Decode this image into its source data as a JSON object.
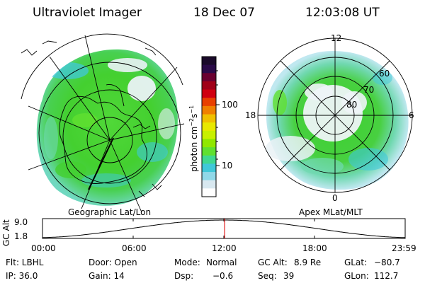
{
  "header": {
    "instrument": "Ultraviolet Imager",
    "date": "18 Dec 07",
    "time": "12:03:08 UT"
  },
  "left_panel": {
    "caption": "Geographic Lat/Lon"
  },
  "right_panel": {
    "caption": "Apex MLat/MLT",
    "mlt_labels": [
      "12",
      "18",
      "6",
      "0"
    ],
    "mlat_labels": [
      "60",
      "70",
      "80"
    ]
  },
  "colorbar": {
    "unit_label": "photon cm",
    "unit_sup1": "−2",
    "unit_mid": "s",
    "unit_sup2": "−1",
    "tick_labels": [
      "100",
      "10"
    ],
    "colors": [
      "#1a0a2a",
      "#2a0a48",
      "#6a0030",
      "#a00018",
      "#d00010",
      "#e84000",
      "#f08000",
      "#f0c000",
      "#e8e800",
      "#c8f000",
      "#90e800",
      "#60e030",
      "#40d890",
      "#40c8d8",
      "#90d8e8",
      "#d8e8f0",
      "#ffffff"
    ]
  },
  "altitude_plot": {
    "ylabel": "GC Alt",
    "yticks": [
      "9.0",
      "1.8"
    ],
    "xticks": [
      "00:00",
      "06:00",
      "12:00",
      "18:00",
      "23:59"
    ],
    "marker_time_fraction": 0.5021
  },
  "info": {
    "filter": "Flt: LBHL",
    "door": "Door: Open",
    "mode_label": "Mode:",
    "mode_value": "Normal",
    "gc_alt_label": "GC Alt:",
    "gc_alt_value": "8.9 Re",
    "glat_label": "GLat:",
    "glat_value": "−80.7",
    "ip": "IP: 36.0",
    "gain": "Gain: 14",
    "dsp_label": "Dsp:",
    "dsp_value": "−0.6",
    "seq_label": "Seq:",
    "seq_value": "39",
    "glon_label": "GLon:",
    "glon_value": "112.7"
  },
  "accent_colors": {
    "auroral_green": "#44d030",
    "auroral_cyan": "#40c8d8",
    "auroral_white": "#eaf2f6",
    "marker_red": "#e02020"
  }
}
